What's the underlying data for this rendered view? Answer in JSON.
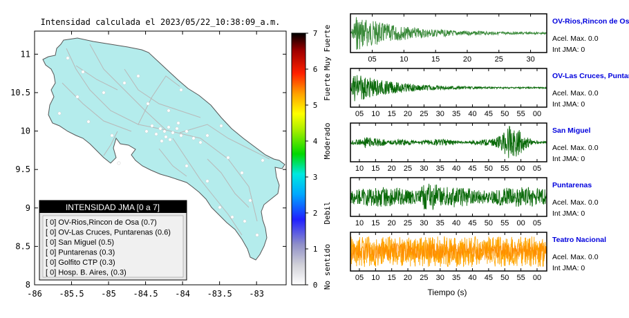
{
  "map": {
    "title": "Intensidad calculada el 2023/05/22_10:38:09_a.m.",
    "xticks": [
      "-86",
      "-85.5",
      "-85",
      "-84.5",
      "-84",
      "-83.5",
      "-83"
    ],
    "yticks": [
      "11",
      "10.5",
      "10",
      "9.5",
      "9",
      "8.5",
      "8"
    ],
    "xlim": [
      -86,
      -82.6
    ],
    "ylim": [
      8,
      11.3
    ]
  },
  "colorbar": {
    "ticks": [
      "0",
      "1",
      "2",
      "3",
      "4",
      "5",
      "6",
      "7"
    ],
    "labels": [
      "No sentido",
      "Debil",
      "Moderado",
      "Fuerte",
      "Muy Fuerte"
    ],
    "colors": [
      "#ffffff",
      "#8080c0",
      "#1010ff",
      "#00c8ff",
      "#00e000",
      "#ffff00",
      "#ff8000",
      "#ff0000",
      "#000000"
    ]
  },
  "legend": {
    "title": "INTENSIDAD JMA [0 a 7]",
    "items": [
      "[ 0]  OV-Rios,Rincon de Osa (0.7)",
      "[ 0]  OV-Las Cruces, Puntarenas (0.6)",
      "[ 0]  San Miguel (0.5)",
      "[ 0]  Puntarenas (0.3)",
      "[ 0]  Golfito CTP (0.3)",
      "[ 0]  Hosp. B. Aires, (0.3)"
    ]
  },
  "waveforms": {
    "xlabel": "Tiempo (s)",
    "panels": [
      {
        "station": "OV-Rios,Rincon de Osa",
        "accel": "Acel. Max. 0.0",
        "jma": "Int JMA: 0",
        "color": "#3a8a3a",
        "ticks": [
          "05",
          "10",
          "15",
          "20",
          "25",
          "30"
        ],
        "shape": "decay_early"
      },
      {
        "station": "OV-Las Cruces, Puntarenas",
        "accel": "Acel. Max. 0.0",
        "jma": "Int JMA: 0",
        "color": "#0a6a0a",
        "ticks": [
          "05",
          "10",
          "15",
          "20",
          "25",
          "30",
          "35",
          "40",
          "45",
          "50",
          "55",
          "00"
        ],
        "shape": "decay"
      },
      {
        "station": "San Miguel",
        "accel": "Acel. Max. 0.0",
        "jma": "Int JMA: 0",
        "color": "#0a6a0a",
        "ticks": [
          "10",
          "15",
          "20",
          "25",
          "30",
          "35",
          "40",
          "45",
          "50",
          "55",
          "00",
          "05"
        ],
        "shape": "late_burst"
      },
      {
        "station": "Puntarenas",
        "accel": "Acel. Max. 0.0",
        "jma": "Int JMA: 0",
        "color": "#0a6a0a",
        "ticks": [
          "10",
          "15",
          "20",
          "25",
          "30",
          "35",
          "40",
          "45",
          "50",
          "55",
          "00",
          "05"
        ],
        "shape": "steady"
      },
      {
        "station": "Teatro Nacional",
        "accel": "Acel. Max. 0.0",
        "jma": "Int JMA: 0",
        "color": "#ffa500",
        "ticks": [
          "05",
          "10",
          "15",
          "20",
          "25",
          "30",
          "35",
          "40",
          "45",
          "50",
          "55",
          "00"
        ],
        "shape": "noise"
      }
    ]
  },
  "chart_data": [
    {
      "type": "scatter",
      "title": "Intensidad calculada el 2023/05/22_10:38:09_a.m.",
      "xlim": [
        -86,
        -82.6
      ],
      "ylim": [
        8,
        11.3
      ],
      "x_ticks": [
        -86,
        -85.5,
        -85,
        -84.5,
        -84,
        -83.5,
        -83
      ],
      "y_ticks": [
        8,
        8.5,
        9,
        9.5,
        10,
        10.5,
        11
      ],
      "colorbar": {
        "range": [
          0,
          7
        ],
        "labels": [
          "No sentido",
          "Debil",
          "Moderado",
          "Fuerte",
          "Muy Fuerte"
        ]
      }
    },
    {
      "type": "line",
      "xlabel": "Tiempo (s)",
      "series": [
        {
          "name": "OV-Rios,Rincon de Osa"
        },
        {
          "name": "OV-Las Cruces, Puntarenas"
        },
        {
          "name": "San Miguel"
        },
        {
          "name": "Puntarenas"
        },
        {
          "name": "Teatro Nacional"
        }
      ]
    }
  ]
}
